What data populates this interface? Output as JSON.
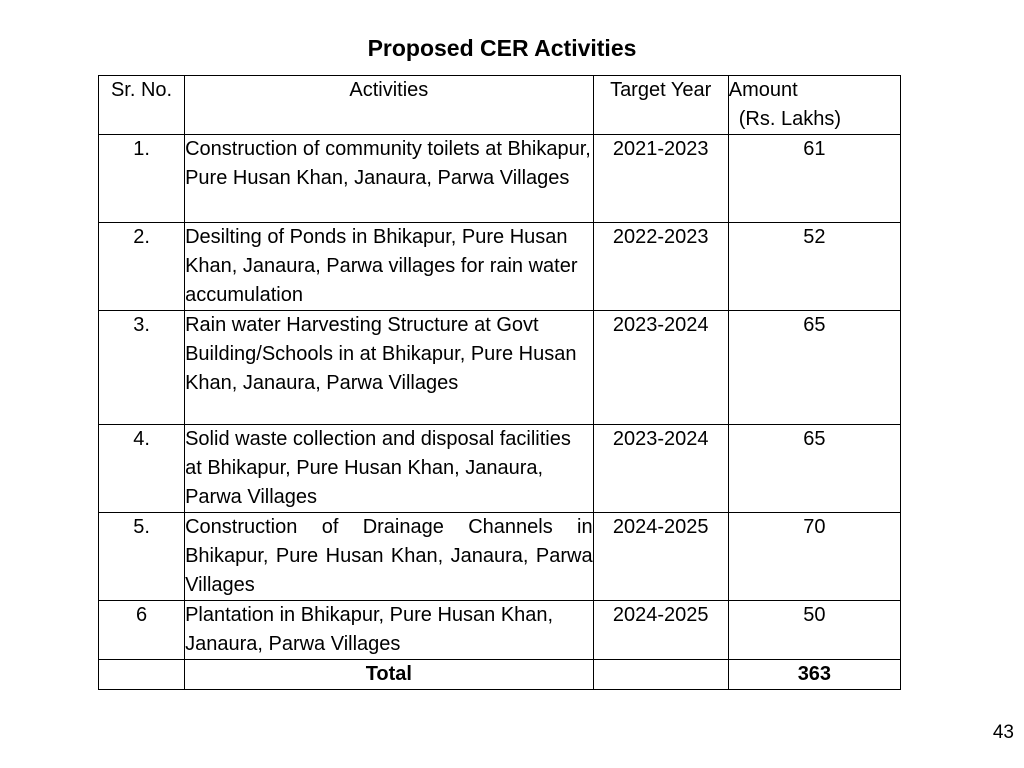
{
  "title": "Proposed CER Activities",
  "table": {
    "headers": {
      "sr_no": "Sr. No.",
      "activities": "Activities",
      "target_year": "Target Year",
      "amount_line1": "Amount",
      "amount_line2": "(Rs. Lakhs)"
    },
    "rows": [
      {
        "sr": "1.",
        "activity": "Construction of community toilets at Bhikapur, Pure Husan Khan, Janaura, Parwa  Villages",
        "year": "2021-2023",
        "amount": "61"
      },
      {
        "sr": "2.",
        "activity": "Desilting of Ponds in Bhikapur, Pure Husan Khan, Janaura, Parwa  villages for rain water accumulation",
        "year": "2022-2023",
        "amount": "52"
      },
      {
        "sr": "3.",
        "activity": "Rain water Harvesting Structure at Govt Building/Schools in at Bhikapur, Pure Husan Khan, Janaura, Parwa Villages",
        "year": "2023-2024",
        "amount": "65"
      },
      {
        "sr": "4.",
        "activity": "Solid waste collection and disposal facilities at Bhikapur, Pure Husan Khan, Janaura, Parwa  Villages",
        "year": "2023-2024",
        "amount": "65"
      },
      {
        "sr": "5.",
        "activity": "Construction of Drainage Channels in Bhikapur, Pure Husan Khan, Janaura, Parwa  Villages",
        "year": "2024-2025",
        "amount": "70"
      },
      {
        "sr": "6",
        "activity": "Plantation in Bhikapur, Pure Husan Khan, Janaura, Parwa  Villages",
        "year": "2024-2025",
        "amount": "50"
      }
    ],
    "total": {
      "label": "Total",
      "amount": "363"
    }
  },
  "page_number": "43"
}
